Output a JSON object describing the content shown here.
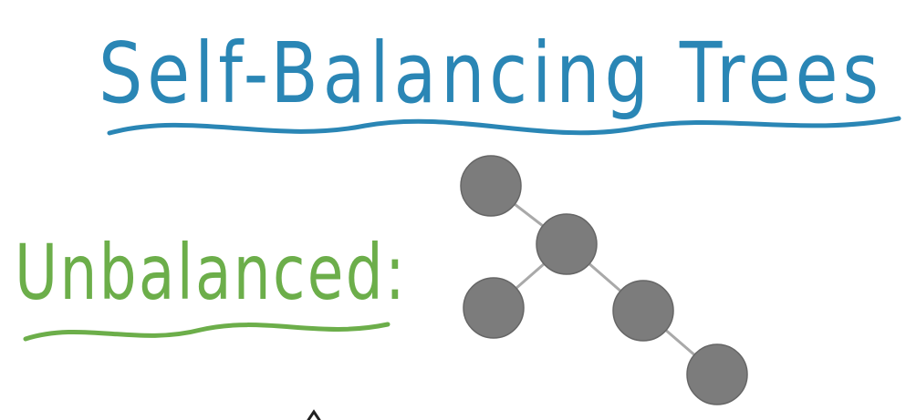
{
  "title": "Self-Balancing Trees",
  "label": "Unbalanced:",
  "colors": {
    "title": "#2a86b5",
    "label": "#6cae4a",
    "node": "#7c7c7c",
    "edge": "#a9a9a9"
  },
  "tree": {
    "nodes": [
      "n1",
      "n2",
      "n3",
      "n4",
      "n5"
    ],
    "edges": [
      [
        "n1",
        "n2"
      ],
      [
        "n2",
        "n3"
      ],
      [
        "n2",
        "n4"
      ],
      [
        "n4",
        "n5"
      ]
    ]
  }
}
